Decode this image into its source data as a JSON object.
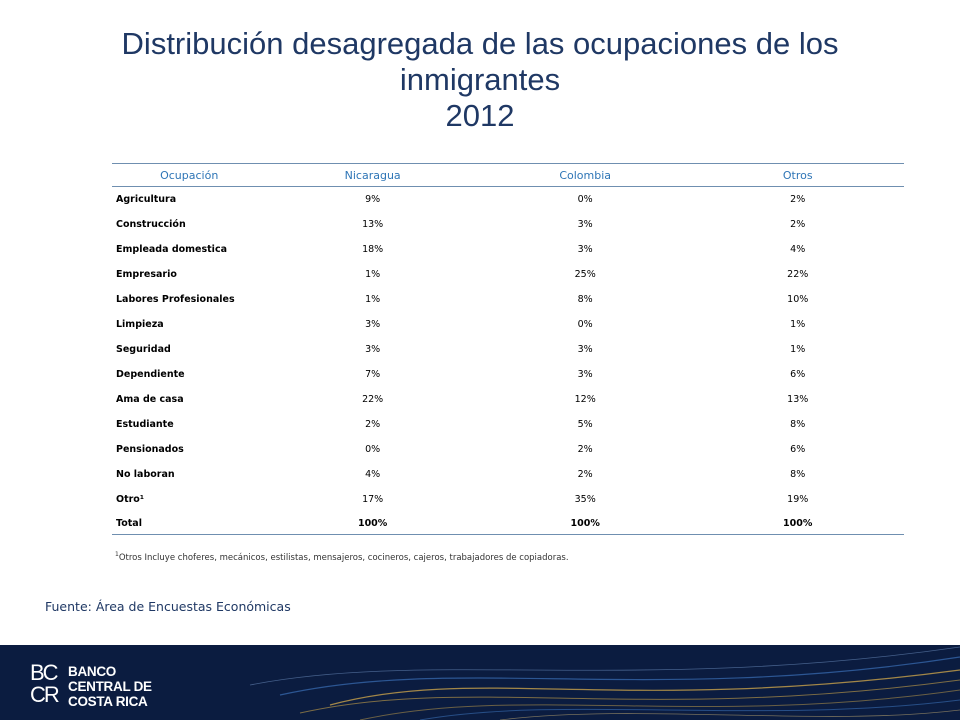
{
  "slide": {
    "title_lines": [
      "Distribución desagregada de las ocupaciones de los",
      "inmigrantes",
      "2012"
    ]
  },
  "table": {
    "headers": [
      "Ocupación",
      "Nicaragua",
      "Colombia",
      "Otros"
    ],
    "rows": [
      [
        "Agricultura",
        "9%",
        "0%",
        "2%"
      ],
      [
        "Construcción",
        "13%",
        "3%",
        "2%"
      ],
      [
        "Empleada domestica",
        "18%",
        "3%",
        "4%"
      ],
      [
        "Empresario",
        "1%",
        "25%",
        "22%"
      ],
      [
        "Labores Profesionales",
        "1%",
        "8%",
        "10%"
      ],
      [
        "Limpieza",
        "3%",
        "0%",
        "1%"
      ],
      [
        "Seguridad",
        "3%",
        "3%",
        "1%"
      ],
      [
        "Dependiente",
        "7%",
        "3%",
        "6%"
      ],
      [
        "Ama de casa",
        "22%",
        "12%",
        "13%"
      ],
      [
        "Estudiante",
        "2%",
        "5%",
        "8%"
      ],
      [
        "Pensionados",
        "0%",
        "2%",
        "6%"
      ],
      [
        "No laboran",
        "4%",
        "2%",
        "8%"
      ],
      [
        "Otro¹",
        "17%",
        "35%",
        "19%"
      ]
    ],
    "total": [
      "Total",
      "100%",
      "100%",
      "100%"
    ]
  },
  "note": {
    "marker": "1",
    "text": "Otros Incluye choferes, mecánicos, estilistas, mensajeros, cocineros, cajeros, trabajadores de copiadoras."
  },
  "source": "Fuente: Área de Encuestas Económicas",
  "footer": {
    "logo_mark": [
      "BC",
      "CR"
    ],
    "logo_name": [
      "BANCO",
      "CENTRAL DE",
      "COSTA RICA"
    ],
    "colors": {
      "band": "#0b1c40",
      "wave_gold": "#c9a34a",
      "wave_blue": "#3b6fb6"
    }
  }
}
